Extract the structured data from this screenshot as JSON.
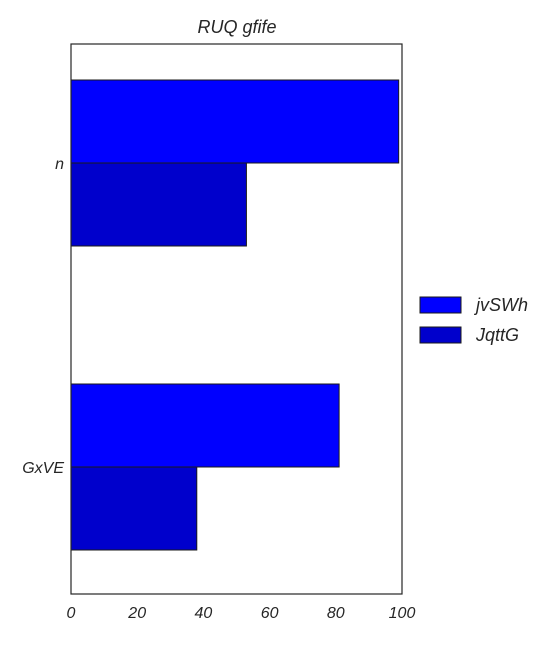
{
  "chart_data": {
    "type": "bar",
    "orientation": "horizontal",
    "title": "RUQ gfife",
    "xlabel": "",
    "ylabel": "",
    "categories": [
      "n",
      "GxVE"
    ],
    "series": [
      {
        "name": "jvSWh",
        "values": [
          99,
          81
        ],
        "color": "#0000ff"
      },
      {
        "name": "JqttG",
        "values": [
          53,
          38
        ],
        "color": "#0000cc"
      }
    ],
    "xlim": [
      0,
      100
    ],
    "xticks": [
      0,
      20,
      40,
      60,
      80,
      100
    ],
    "grid": false,
    "legend_position": "right"
  }
}
